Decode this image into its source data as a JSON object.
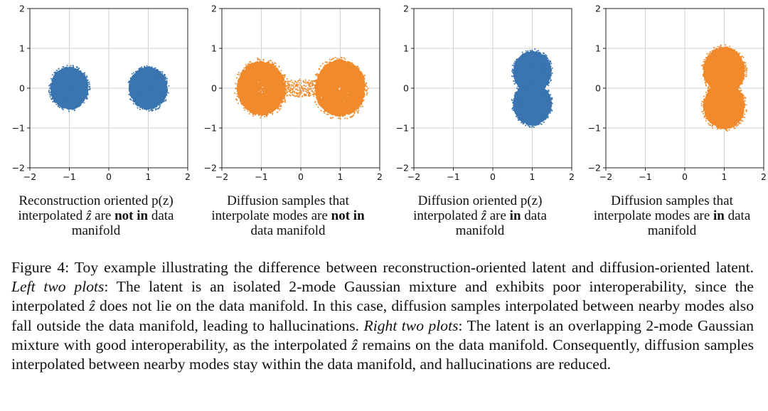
{
  "colors": {
    "blue": "#3a75b0",
    "orange": "#f08a2c",
    "grid": "#d0d0d0"
  },
  "chart_data": [
    {
      "type": "scatter",
      "xlim": [
        -2,
        2
      ],
      "ylim": [
        -2,
        2
      ],
      "xticks": [
        "−2",
        "−1",
        "0",
        "1",
        "2"
      ],
      "yticks": [
        "2",
        "1",
        "0",
        "−1",
        "−2"
      ],
      "grid": true,
      "color": "blue",
      "distribution": "two isolated Gaussian modes at (-1, 0) and (1, 0)",
      "modes": [
        {
          "cx": -1,
          "cy": 0,
          "r": 0.5
        },
        {
          "cx": 1,
          "cy": 0,
          "r": 0.5
        }
      ],
      "bridge": 0,
      "caption": {
        "pre": "Reconstruction oriented p(z)",
        "line2pre": "interpolated",
        "z": "ẑ",
        "mid": " are ",
        "bold": "not in",
        "post": " data",
        "line3": "manifold"
      }
    },
    {
      "type": "scatter",
      "xlim": [
        -2,
        2
      ],
      "ylim": [
        -2,
        2
      ],
      "xticks": [
        "−2",
        "−1",
        "0",
        "1",
        "2"
      ],
      "yticks": [
        "2",
        "1",
        "0",
        "−1",
        "−2"
      ],
      "grid": true,
      "color": "orange",
      "distribution": "two modes at (-1, 0) and (1, 0) with sparse samples between them",
      "modes": [
        {
          "cx": -1,
          "cy": 0,
          "r": 0.65
        },
        {
          "cx": 1,
          "cy": 0,
          "r": 0.68
        }
      ],
      "bridge": 1,
      "caption": {
        "line1": "Diffusion samples that",
        "line2": "interpolate modes are ",
        "bold": "not in",
        "line3": "data manifold"
      }
    },
    {
      "type": "scatter",
      "xlim": [
        -2,
        2
      ],
      "ylim": [
        -2,
        2
      ],
      "xticks": [
        "−2",
        "−1",
        "0",
        "1",
        "2"
      ],
      "yticks": [
        "2",
        "1",
        "0",
        "−1",
        "−2"
      ],
      "grid": true,
      "color": "blue",
      "distribution": "two overlapping modes at (1, 0.4) and (1, -0.4)",
      "modes": [
        {
          "cx": 1,
          "cy": 0.4,
          "r": 0.5
        },
        {
          "cx": 1,
          "cy": -0.4,
          "r": 0.5
        }
      ],
      "bridge": 0,
      "caption": {
        "pre": "Diffusion oriented p(z)",
        "line2pre": "interpolated",
        "z": "ẑ",
        "mid": " are ",
        "bold": "in",
        "post": " data",
        "line3": "manifold"
      }
    },
    {
      "type": "scatter",
      "xlim": [
        -2,
        2
      ],
      "ylim": [
        -2,
        2
      ],
      "xticks": [
        "−2",
        "−1",
        "0",
        "1",
        "2"
      ],
      "yticks": [
        "2",
        "1",
        "0",
        "−1",
        "−2"
      ],
      "grid": true,
      "color": "orange",
      "distribution": "two overlapping modes at (1, 0.45) and (1, -0.45)",
      "modes": [
        {
          "cx": 1,
          "cy": 0.45,
          "r": 0.55
        },
        {
          "cx": 1,
          "cy": -0.45,
          "r": 0.55
        }
      ],
      "bridge": 0,
      "caption": {
        "line1": "Diffusion samples that",
        "line2": "interpolate modes are ",
        "bold": "in",
        "post": " data",
        "line3": "manifold"
      }
    }
  ],
  "figure_caption": {
    "label": "Figure 4:",
    "text1": " Toy example illustrating the difference between reconstruction-oriented latent and diffusion-oriented latent. ",
    "left_label": "Left two plots",
    "text2": ": The latent is an isolated 2-mode Gaussian mixture and exhibits poor interoperability, since the interpolated ",
    "z": "ẑ",
    "text3": " does not lie on the data manifold. In this case, diffusion samples interpolated between nearby modes also fall outside the data manifold, leading to hallucinations. ",
    "right_label": "Right two plots",
    "text4": ": The latent is an overlapping 2-mode Gaussian mixture with good interoperability, as the interpolated ",
    "text5": " remains on the data manifold. Consequently, diffusion samples interpolated between nearby modes stay within the data manifold, and hallucinations are reduced."
  }
}
